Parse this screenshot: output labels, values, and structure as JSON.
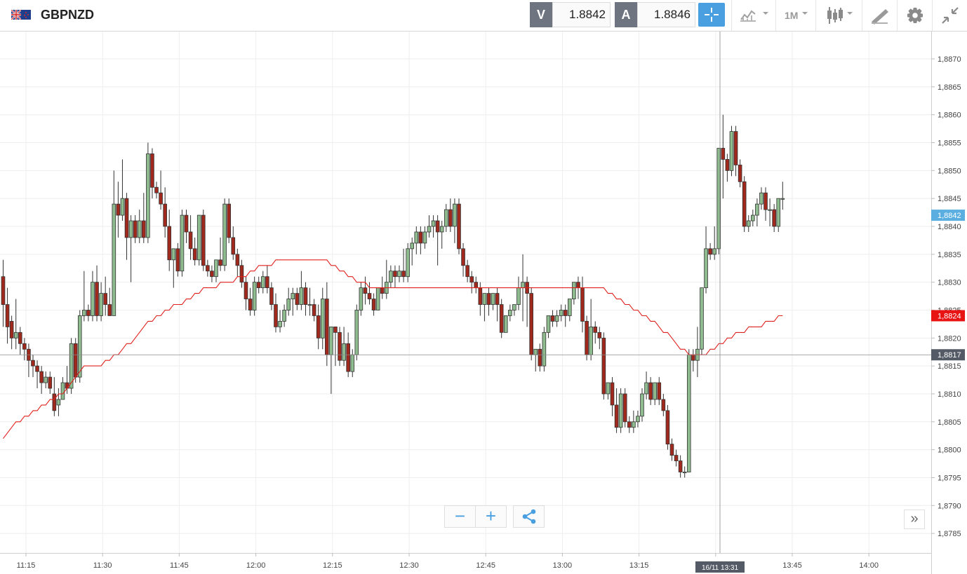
{
  "header": {
    "symbol": "GBPNZD",
    "sell_label": "V",
    "sell_price": "1.8842",
    "buy_label": "A",
    "buy_price": "1.8846",
    "timeframe": "1M",
    "flag_icon": "uk-nz-flag-icon"
  },
  "colors": {
    "up_candle": "#8fbc8f",
    "down_candle": "#a0281c",
    "moving_average": "#e0201c",
    "current_price_tag": "#5aaee0",
    "ma_price_tag": "#e81414",
    "cursor_price_tag": "#555b66",
    "accent": "#4a9fe0"
  },
  "chart_data": {
    "type": "candlestick",
    "x_tick_labels": [
      "11:15",
      "11:30",
      "11:45",
      "12:00",
      "12:15",
      "12:30",
      "12:45",
      "13:00",
      "13:15",
      "13:30",
      "13:45",
      "14:00"
    ],
    "y_tick_labels": [
      "1,8870",
      "1,8865",
      "1,8860",
      "1,8855",
      "1,8850",
      "1,8845",
      "1,8840",
      "1,8835",
      "1,8830",
      "1,8825",
      "1,8820",
      "1,8815",
      "1,8810",
      "1,8805",
      "1,8800",
      "1,8795",
      "1,8790",
      "1,8785"
    ],
    "ylim": [
      1.87815,
      1.88749
    ],
    "grid": true,
    "price_tags": {
      "current": "1,8842",
      "moving_average": "1,8824",
      "cursor": "1,8817"
    },
    "cursor_time_label": "16/11 13:31",
    "candles": [
      [
        1.8831,
        1.8834,
        1.8826,
        1.8822
      ],
      [
        1.8826,
        1.8829,
        1.8822,
        1.8819
      ],
      [
        1.8823,
        1.8824,
        1.882,
        1.8818
      ],
      [
        1.882,
        1.8827,
        1.8821,
        1.8818
      ],
      [
        1.8821,
        1.8822,
        1.8819,
        1.8817
      ],
      [
        1.8819,
        1.882,
        1.8818,
        1.8816
      ],
      [
        1.8818,
        1.8819,
        1.8816,
        1.8813
      ],
      [
        1.8816,
        1.8817,
        1.8815,
        1.8813
      ],
      [
        1.8815,
        1.8816,
        1.8814,
        1.8811
      ],
      [
        1.8814,
        1.8815,
        1.8812,
        1.881
      ],
      [
        1.8812,
        1.8814,
        1.8813,
        1.8811
      ],
      [
        1.8813,
        1.8814,
        1.8811,
        1.881
      ],
      [
        1.881,
        1.8813,
        1.8807,
        1.8806
      ],
      [
        1.8808,
        1.8811,
        1.8809,
        1.8806
      ],
      [
        1.8809,
        1.8813,
        1.8812,
        1.8809
      ],
      [
        1.8812,
        1.8815,
        1.8811,
        1.881
      ],
      [
        1.8811,
        1.882,
        1.8819,
        1.881
      ],
      [
        1.8819,
        1.882,
        1.8813,
        1.8812
      ],
      [
        1.8813,
        1.8825,
        1.8824,
        1.8812
      ],
      [
        1.8824,
        1.8832,
        1.8825,
        1.8823
      ],
      [
        1.8825,
        1.8826,
        1.8824,
        1.8823
      ],
      [
        1.8824,
        1.8832,
        1.883,
        1.8823
      ],
      [
        1.883,
        1.8833,
        1.8824,
        1.8823
      ],
      [
        1.8824,
        1.883,
        1.8828,
        1.8823
      ],
      [
        1.8828,
        1.8831,
        1.8826,
        1.8824
      ],
      [
        1.8826,
        1.8829,
        1.8824,
        1.8824
      ],
      [
        1.8824,
        1.885,
        1.8844,
        1.8824
      ],
      [
        1.8844,
        1.8848,
        1.8842,
        1.8838
      ],
      [
        1.8842,
        1.8852,
        1.8845,
        1.8841
      ],
      [
        1.8845,
        1.8846,
        1.8838,
        1.8834
      ],
      [
        1.8838,
        1.8842,
        1.8841,
        1.883
      ],
      [
        1.8841,
        1.8842,
        1.8838,
        1.8837
      ],
      [
        1.8838,
        1.8843,
        1.8841,
        1.8837
      ],
      [
        1.8841,
        1.8846,
        1.8838,
        1.8837
      ],
      [
        1.8838,
        1.8855,
        1.8853,
        1.8837
      ],
      [
        1.8853,
        1.8854,
        1.8847,
        1.8845
      ],
      [
        1.8847,
        1.8848,
        1.8846,
        1.8845
      ],
      [
        1.8846,
        1.885,
        1.8844,
        1.8843
      ],
      [
        1.8844,
        1.8847,
        1.884,
        1.8838
      ],
      [
        1.884,
        1.8843,
        1.8834,
        1.8832
      ],
      [
        1.8834,
        1.8835,
        1.8836,
        1.8829
      ],
      [
        1.8836,
        1.8837,
        1.8832,
        1.8831
      ],
      [
        1.8832,
        1.8843,
        1.8842,
        1.8831
      ],
      [
        1.8842,
        1.8843,
        1.8839,
        1.8837
      ],
      [
        1.8839,
        1.8842,
        1.8836,
        1.8834
      ],
      [
        1.8836,
        1.8838,
        1.8834,
        1.8833
      ],
      [
        1.8834,
        1.8842,
        1.8842,
        1.8833
      ],
      [
        1.8842,
        1.8843,
        1.8833,
        1.8832
      ],
      [
        1.8833,
        1.8834,
        1.8832,
        1.8831
      ],
      [
        1.8832,
        1.8833,
        1.8831,
        1.883
      ],
      [
        1.8831,
        1.8834,
        1.8834,
        1.883
      ],
      [
        1.8834,
        1.8838,
        1.8833,
        1.8832
      ],
      [
        1.8833,
        1.8845,
        1.8844,
        1.8832
      ],
      [
        1.8844,
        1.8845,
        1.8838,
        1.8837
      ],
      [
        1.8838,
        1.884,
        1.8835,
        1.8834
      ],
      [
        1.8835,
        1.8836,
        1.8833,
        1.8831
      ],
      [
        1.8833,
        1.8834,
        1.883,
        1.8829
      ],
      [
        1.883,
        1.8831,
        1.8827,
        1.8825
      ],
      [
        1.8827,
        1.8829,
        1.8825,
        1.8824
      ],
      [
        1.8825,
        1.8831,
        1.883,
        1.8824
      ],
      [
        1.883,
        1.8831,
        1.8829,
        1.8828
      ],
      [
        1.8829,
        1.8832,
        1.8831,
        1.8828
      ],
      [
        1.8831,
        1.8833,
        1.8829,
        1.8828
      ],
      [
        1.8829,
        1.883,
        1.8826,
        1.8825
      ],
      [
        1.8826,
        1.8828,
        1.8822,
        1.8821
      ],
      [
        1.8822,
        1.8825,
        1.8823,
        1.8821
      ],
      [
        1.8823,
        1.8826,
        1.8825,
        1.8822
      ],
      [
        1.8825,
        1.8829,
        1.8827,
        1.8824
      ],
      [
        1.8827,
        1.8829,
        1.8828,
        1.8824
      ],
      [
        1.8828,
        1.8829,
        1.8826,
        1.8825
      ],
      [
        1.8826,
        1.8832,
        1.8829,
        1.8825
      ],
      [
        1.8829,
        1.883,
        1.8826,
        1.8824
      ],
      [
        1.8826,
        1.8829,
        1.8826,
        1.8824
      ],
      [
        1.8826,
        1.8827,
        1.8824,
        1.8823
      ],
      [
        1.8824,
        1.8826,
        1.882,
        1.8818
      ],
      [
        1.882,
        1.8829,
        1.8827,
        1.8818
      ],
      [
        1.8827,
        1.883,
        1.8817,
        1.8815
      ],
      [
        1.8817,
        1.8821,
        1.8822,
        1.881
      ],
      [
        1.8822,
        1.8822,
        1.8821,
        1.8815
      ],
      [
        1.8821,
        1.8822,
        1.8816,
        1.8815
      ],
      [
        1.8816,
        1.8822,
        1.8819,
        1.8815
      ],
      [
        1.8819,
        1.8821,
        1.8814,
        1.8813
      ],
      [
        1.8814,
        1.8818,
        1.8817,
        1.8813
      ],
      [
        1.8817,
        1.8826,
        1.8825,
        1.8816
      ],
      [
        1.8825,
        1.883,
        1.8829,
        1.8824
      ],
      [
        1.8829,
        1.8831,
        1.8828,
        1.8826
      ],
      [
        1.8828,
        1.883,
        1.8827,
        1.8826
      ],
      [
        1.8827,
        1.8828,
        1.8825,
        1.8824
      ],
      [
        1.8825,
        1.8829,
        1.8829,
        1.8825
      ],
      [
        1.8829,
        1.8831,
        1.8828,
        1.8827
      ],
      [
        1.8828,
        1.8834,
        1.883,
        1.8827
      ],
      [
        1.883,
        1.8833,
        1.8832,
        1.8829
      ],
      [
        1.8832,
        1.8833,
        1.8831,
        1.8829
      ],
      [
        1.8831,
        1.8833,
        1.8832,
        1.883
      ],
      [
        1.8832,
        1.8836,
        1.8831,
        1.883
      ],
      [
        1.8831,
        1.8837,
        1.8836,
        1.883
      ],
      [
        1.8836,
        1.8838,
        1.8837,
        1.8833
      ],
      [
        1.8837,
        1.884,
        1.8839,
        1.8835
      ],
      [
        1.8839,
        1.884,
        1.8837,
        1.8835
      ],
      [
        1.8837,
        1.884,
        1.8839,
        1.8836
      ],
      [
        1.8839,
        1.8842,
        1.884,
        1.8838
      ],
      [
        1.884,
        1.8842,
        1.8841,
        1.8838
      ],
      [
        1.8841,
        1.8842,
        1.8839,
        1.8833
      ],
      [
        1.8839,
        1.8841,
        1.884,
        1.8836
      ],
      [
        1.884,
        1.8844,
        1.8843,
        1.8839
      ],
      [
        1.8843,
        1.8845,
        1.884,
        1.8839
      ],
      [
        1.884,
        1.8845,
        1.8844,
        1.8837
      ],
      [
        1.8844,
        1.8845,
        1.8836,
        1.8835
      ],
      [
        1.8836,
        1.8837,
        1.8833,
        1.8831
      ],
      [
        1.8833,
        1.8834,
        1.8831,
        1.883
      ],
      [
        1.8831,
        1.8832,
        1.883,
        1.8828
      ],
      [
        1.883,
        1.8831,
        1.8829,
        1.8828
      ],
      [
        1.8829,
        1.883,
        1.8826,
        1.8824
      ],
      [
        1.8826,
        1.8827,
        1.8828,
        1.8823
      ],
      [
        1.8828,
        1.8829,
        1.8826,
        1.8824
      ],
      [
        1.8826,
        1.8827,
        1.8828,
        1.8825
      ],
      [
        1.8828,
        1.8829,
        1.8826,
        1.8823
      ],
      [
        1.8826,
        1.8827,
        1.8821,
        1.882
      ],
      [
        1.8821,
        1.8822,
        1.8824,
        1.8821
      ],
      [
        1.8824,
        1.8826,
        1.8825,
        1.8823
      ],
      [
        1.8825,
        1.8826,
        1.8826,
        1.8824
      ],
      [
        1.8826,
        1.8831,
        1.8829,
        1.8825
      ],
      [
        1.8829,
        1.8835,
        1.883,
        1.8823
      ],
      [
        1.883,
        1.8831,
        1.8828,
        1.8822
      ],
      [
        1.8828,
        1.8829,
        1.8817,
        1.8816
      ],
      [
        1.8817,
        1.8818,
        1.8818,
        1.8814
      ],
      [
        1.8818,
        1.8819,
        1.8815,
        1.8814
      ],
      [
        1.8815,
        1.8822,
        1.8821,
        1.8814
      ],
      [
        1.8821,
        1.8824,
        1.8824,
        1.882
      ],
      [
        1.8824,
        1.8825,
        1.8823,
        1.8822
      ],
      [
        1.8823,
        1.8825,
        1.8824,
        1.8822
      ],
      [
        1.8824,
        1.8826,
        1.8825,
        1.8823
      ],
      [
        1.8825,
        1.8826,
        1.8824,
        1.8822
      ],
      [
        1.8824,
        1.8825,
        1.8827,
        1.8823
      ],
      [
        1.8827,
        1.883,
        1.883,
        1.8826
      ],
      [
        1.883,
        1.8831,
        1.8829,
        1.8827
      ],
      [
        1.8829,
        1.8831,
        1.8823,
        1.8821
      ],
      [
        1.8823,
        1.8824,
        1.8817,
        1.8816
      ],
      [
        1.8817,
        1.8827,
        1.8822,
        1.8816
      ],
      [
        1.8822,
        1.8823,
        1.8821,
        1.8819
      ],
      [
        1.8821,
        1.8822,
        1.882,
        1.8818
      ],
      [
        1.882,
        1.8821,
        1.881,
        1.8809
      ],
      [
        1.881,
        1.8812,
        1.8812,
        1.8809
      ],
      [
        1.8812,
        1.8813,
        1.8808,
        1.8806
      ],
      [
        1.8808,
        1.8811,
        1.8804,
        1.8803
      ],
      [
        1.8804,
        1.8811,
        1.881,
        1.8803
      ],
      [
        1.881,
        1.8811,
        1.8805,
        1.8804
      ],
      [
        1.8805,
        1.8806,
        1.8804,
        1.8803
      ],
      [
        1.8804,
        1.8807,
        1.8805,
        1.8803
      ],
      [
        1.8805,
        1.8807,
        1.8806,
        1.8804
      ],
      [
        1.8806,
        1.8811,
        1.881,
        1.8805
      ],
      [
        1.881,
        1.8814,
        1.8812,
        1.8809
      ],
      [
        1.8812,
        1.8813,
        1.8809,
        1.8808
      ],
      [
        1.8809,
        1.8811,
        1.8812,
        1.8808
      ],
      [
        1.8812,
        1.8813,
        1.8809,
        1.8808
      ],
      [
        1.8809,
        1.881,
        1.8807,
        1.8806
      ],
      [
        1.8807,
        1.8808,
        1.8801,
        1.88
      ],
      [
        1.8801,
        1.8802,
        1.8799,
        1.8798
      ],
      [
        1.8799,
        1.88,
        1.8798,
        1.8797
      ],
      [
        1.8798,
        1.8799,
        1.8796,
        1.8795
      ],
      [
        1.8796,
        1.8797,
        1.8796,
        1.8795
      ],
      [
        1.8796,
        1.8818,
        1.8817,
        1.8796
      ],
      [
        1.8817,
        1.8818,
        1.8816,
        1.8814
      ],
      [
        1.8816,
        1.8822,
        1.8818,
        1.8813
      ],
      [
        1.8818,
        1.8826,
        1.8829,
        1.8817
      ],
      [
        1.8829,
        1.884,
        1.8836,
        1.8828
      ],
      [
        1.8836,
        1.8837,
        1.8835,
        1.8834
      ],
      [
        1.8835,
        1.884,
        1.8836,
        1.8834
      ],
      [
        1.8836,
        1.885,
        1.8854,
        1.8835
      ],
      [
        1.8854,
        1.886,
        1.8852,
        1.8845
      ],
      [
        1.8852,
        1.8853,
        1.885,
        1.8848
      ],
      [
        1.885,
        1.8858,
        1.8857,
        1.8849
      ],
      [
        1.8857,
        1.8858,
        1.8851,
        1.8849
      ],
      [
        1.8851,
        1.8852,
        1.8848,
        1.8847
      ],
      [
        1.8848,
        1.8849,
        1.884,
        1.8839
      ],
      [
        1.884,
        1.8842,
        1.8841,
        1.8839
      ],
      [
        1.8841,
        1.8843,
        1.8842,
        1.884
      ],
      [
        1.8842,
        1.8845,
        1.8844,
        1.884
      ],
      [
        1.8844,
        1.8847,
        1.8846,
        1.8843
      ],
      [
        1.8846,
        1.8847,
        1.8843,
        1.8841
      ],
      [
        1.8843,
        1.8845,
        1.8843,
        1.884
      ],
      [
        1.8843,
        1.8844,
        1.884,
        1.8839
      ],
      [
        1.884,
        1.8845,
        1.8845,
        1.8839
      ],
      [
        1.8845,
        1.8848,
        1.8845,
        1.8843
      ]
    ],
    "moving_average": [
      1.8802,
      1.8803,
      1.8804,
      1.8805,
      1.8805,
      1.8806,
      1.8806,
      1.8807,
      1.8807,
      1.8808,
      1.8808,
      1.8809,
      1.8809,
      1.881,
      1.881,
      1.8811,
      1.8812,
      1.8813,
      1.8814,
      1.8815,
      1.8815,
      1.8815,
      1.8815,
      1.8815,
      1.8816,
      1.8816,
      1.8817,
      1.8817,
      1.8818,
      1.8819,
      1.8819,
      1.882,
      1.8821,
      1.8822,
      1.8823,
      1.8823,
      1.8824,
      1.8824,
      1.8825,
      1.8825,
      1.8826,
      1.8826,
      1.8826,
      1.8827,
      1.8827,
      1.8828,
      1.8828,
      1.8829,
      1.8829,
      1.8829,
      1.8829,
      1.883,
      1.883,
      1.883,
      1.883,
      1.8831,
      1.8831,
      1.8831,
      1.8832,
      1.8832,
      1.8833,
      1.8833,
      1.8833,
      1.8833,
      1.8834,
      1.8834,
      1.8834,
      1.8834,
      1.8834,
      1.8834,
      1.8834,
      1.8834,
      1.8834,
      1.8834,
      1.8834,
      1.8834,
      1.8834,
      1.8833,
      1.8833,
      1.8832,
      1.8832,
      1.8831,
      1.8831,
      1.883,
      1.883,
      1.883,
      1.8829,
      1.8829,
      1.8829,
      1.8829,
      1.8829,
      1.8829,
      1.8829,
      1.8829,
      1.8829,
      1.8829,
      1.8829,
      1.8829,
      1.8829,
      1.8829,
      1.8829,
      1.8829,
      1.8829,
      1.8829,
      1.8829,
      1.8829,
      1.8829,
      1.8829,
      1.8829,
      1.8829,
      1.8829,
      1.8829,
      1.8829,
      1.8829,
      1.8829,
      1.8829,
      1.8829,
      1.8829,
      1.8829,
      1.8829,
      1.8829,
      1.8829,
      1.8829,
      1.8829,
      1.8829,
      1.8829,
      1.8829,
      1.8829,
      1.8829,
      1.8829,
      1.8829,
      1.8829,
      1.8829,
      1.8829,
      1.8829,
      1.8829,
      1.8829,
      1.8829,
      1.8829,
      1.8829,
      1.8829,
      1.8829,
      1.8828,
      1.8828,
      1.8827,
      1.8827,
      1.8826,
      1.8826,
      1.8825,
      1.8825,
      1.8824,
      1.8824,
      1.8823,
      1.8823,
      1.8822,
      1.8821,
      1.8821,
      1.882,
      1.8819,
      1.8818,
      1.8818,
      1.8817,
      1.8817,
      1.8817,
      1.8817,
      1.8817,
      1.8818,
      1.8818,
      1.8819,
      1.8819,
      1.882,
      1.882,
      1.8821,
      1.8821,
      1.8821,
      1.8822,
      1.8822,
      1.8822,
      1.8822,
      1.8823,
      1.8823,
      1.8823,
      1.8824,
      1.8824
    ]
  },
  "controls": {
    "zoom_out": "−",
    "zoom_in": "+",
    "share_icon": "share-icon",
    "expand": "»"
  }
}
